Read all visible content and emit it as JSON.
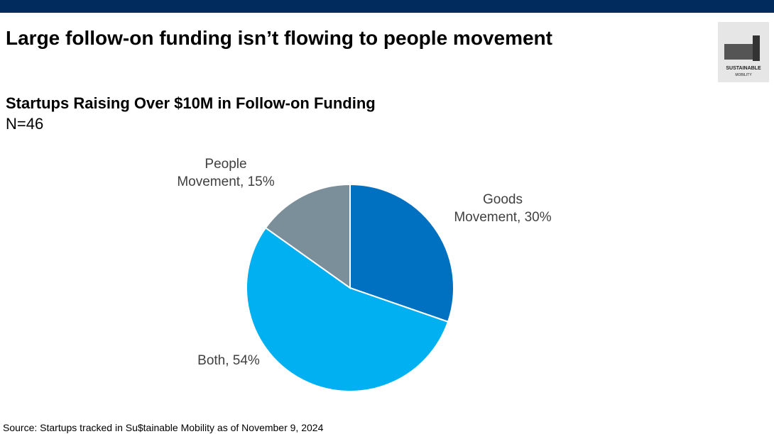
{
  "header": {
    "title": "Large follow-on funding isn’t flowing to people movement",
    "logo_lines": [
      "SUSTAINABLE",
      "MOBILITY"
    ]
  },
  "chart_data": {
    "type": "pie",
    "title": "Startups Raising Over $10M in Follow-on Funding",
    "subtitle": "N=46",
    "values": [
      30,
      54,
      15
    ],
    "value_labels": [
      "Goods Movement, 30%",
      "Both, 54%",
      "People Movement, 15%"
    ],
    "colors": [
      "#0070c0",
      "#00b0f0",
      "#7b8f9a"
    ]
  },
  "source": "Source: Startups tracked in Su$tainable Mobility as of November 9, 2024"
}
